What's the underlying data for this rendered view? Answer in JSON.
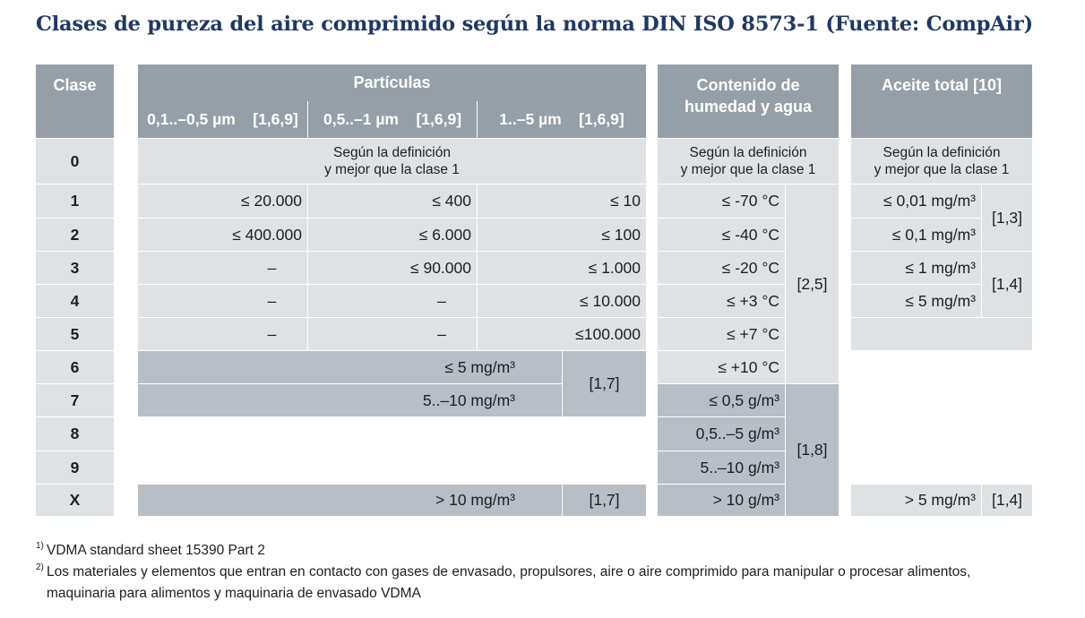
{
  "title": "Clases de pureza del aire comprimido según la norma DIN ISO 8573-1 (Fuente: CompAir)",
  "headers": {
    "clase": "Clase",
    "particulas": "Partículas",
    "p_sub1": "0,1..–0,5 µm    [1,6,9]",
    "p_sub2": "0,5..–1 µm    [1,6,9]",
    "p_sub3": "1..–5 µm    [1,6,9]",
    "humedad_l1": "Contenido de",
    "humedad_l2": "humedad y agua",
    "aceite": "Aceite total [10]"
  },
  "classes": [
    "0",
    "1",
    "2",
    "3",
    "4",
    "5",
    "6",
    "7",
    "8",
    "9",
    "X"
  ],
  "row0": {
    "part_l1": "Según la definición",
    "part_l2": "y mejor que la clase 1",
    "hum_l1": "Según la definición",
    "hum_l2": "y mejor que la clase 1",
    "oil_l1": "Según la definición",
    "oil_l2": "y mejor que la clase 1"
  },
  "particles": [
    [
      "≤ 20.000",
      "≤ 400",
      "≤ 10"
    ],
    [
      "≤ 400.000",
      "≤ 6.000",
      "≤ 100"
    ],
    [
      "–",
      "≤ 90.000",
      "≤ 1.000"
    ],
    [
      "–",
      "–",
      "≤ 10.000"
    ],
    [
      "–",
      "–",
      "≤100.000"
    ]
  ],
  "particles_mass": {
    "c6": "≤ 5 mg/m³",
    "c7": "5..–10 mg/m³",
    "ref67": "[1,7]",
    "cx": "> 10 mg/m³",
    "refx": "[1,7]"
  },
  "humidity": {
    "values": [
      "≤ -70 °C",
      "≤ -40 °C",
      "≤ -20 °C",
      "≤ +3 °C",
      "≤ +7 °C",
      "≤ +10 °C",
      "≤ 0,5 g/m³",
      "0,5..–5 g/m³",
      "5..–10 g/m³",
      "> 10 g/m³"
    ],
    "ref_a": "[2,5]",
    "ref_b": "[1,8]"
  },
  "oil": {
    "values": [
      "≤ 0,01 mg/m³",
      "≤ 0,1 mg/m³",
      "≤ 1 mg/m³",
      "≤ 5 mg/m³"
    ],
    "ref12": "[1,3]",
    "ref34": "[1,4]",
    "x": "> 5 mg/m³",
    "refx": "[1,4]"
  },
  "footnotes": [
    {
      "mark": "1)",
      "text": "VDMA standard sheet 15390 Part 2"
    },
    {
      "mark": "2)",
      "text": "Los materiales y elementos que entran en contacto con gases de envasado, propulsores, aire o aire comprimido para manipular o procesar alimentos,",
      "text2": "maquinaria para alimentos y maquinaria de envasado VDMA"
    }
  ]
}
